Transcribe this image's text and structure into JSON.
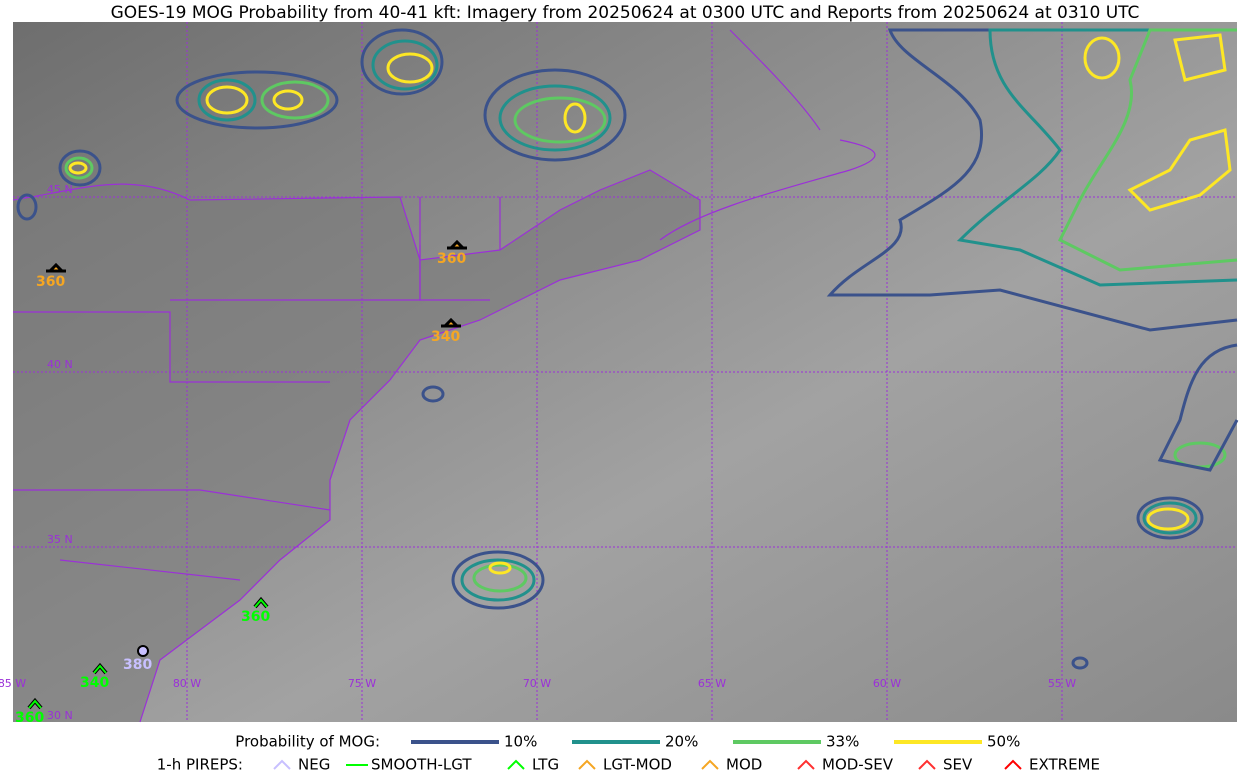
{
  "title": "GOES-19 MOG Probability from 40-41 kft: Imagery from 20250624 at 0300 UTC and Reports from 20250624 at 0310 UTC",
  "map": {
    "lat_labels": [
      "45 N",
      "40 N",
      "35 N",
      "30 N"
    ],
    "lon_labels": [
      "85 W",
      "80 W",
      "75 W",
      "70 W",
      "65 W",
      "60 W",
      "55 W"
    ],
    "pirep_altitudes": [
      "360",
      "360",
      "340",
      "360",
      "340",
      "380",
      "360"
    ]
  },
  "legend": {
    "probability": {
      "title": "Probability of MOG:",
      "items": [
        "10%",
        "20%",
        "33%",
        "50%"
      ]
    },
    "pireps": {
      "title": "1-h PIREPS:",
      "items": [
        "NEG",
        "SMOOTH-LGT",
        "LTG",
        "LGT-MOD",
        "MOD",
        "MOD-SEV",
        "SEV",
        "EXTREME"
      ]
    }
  }
}
